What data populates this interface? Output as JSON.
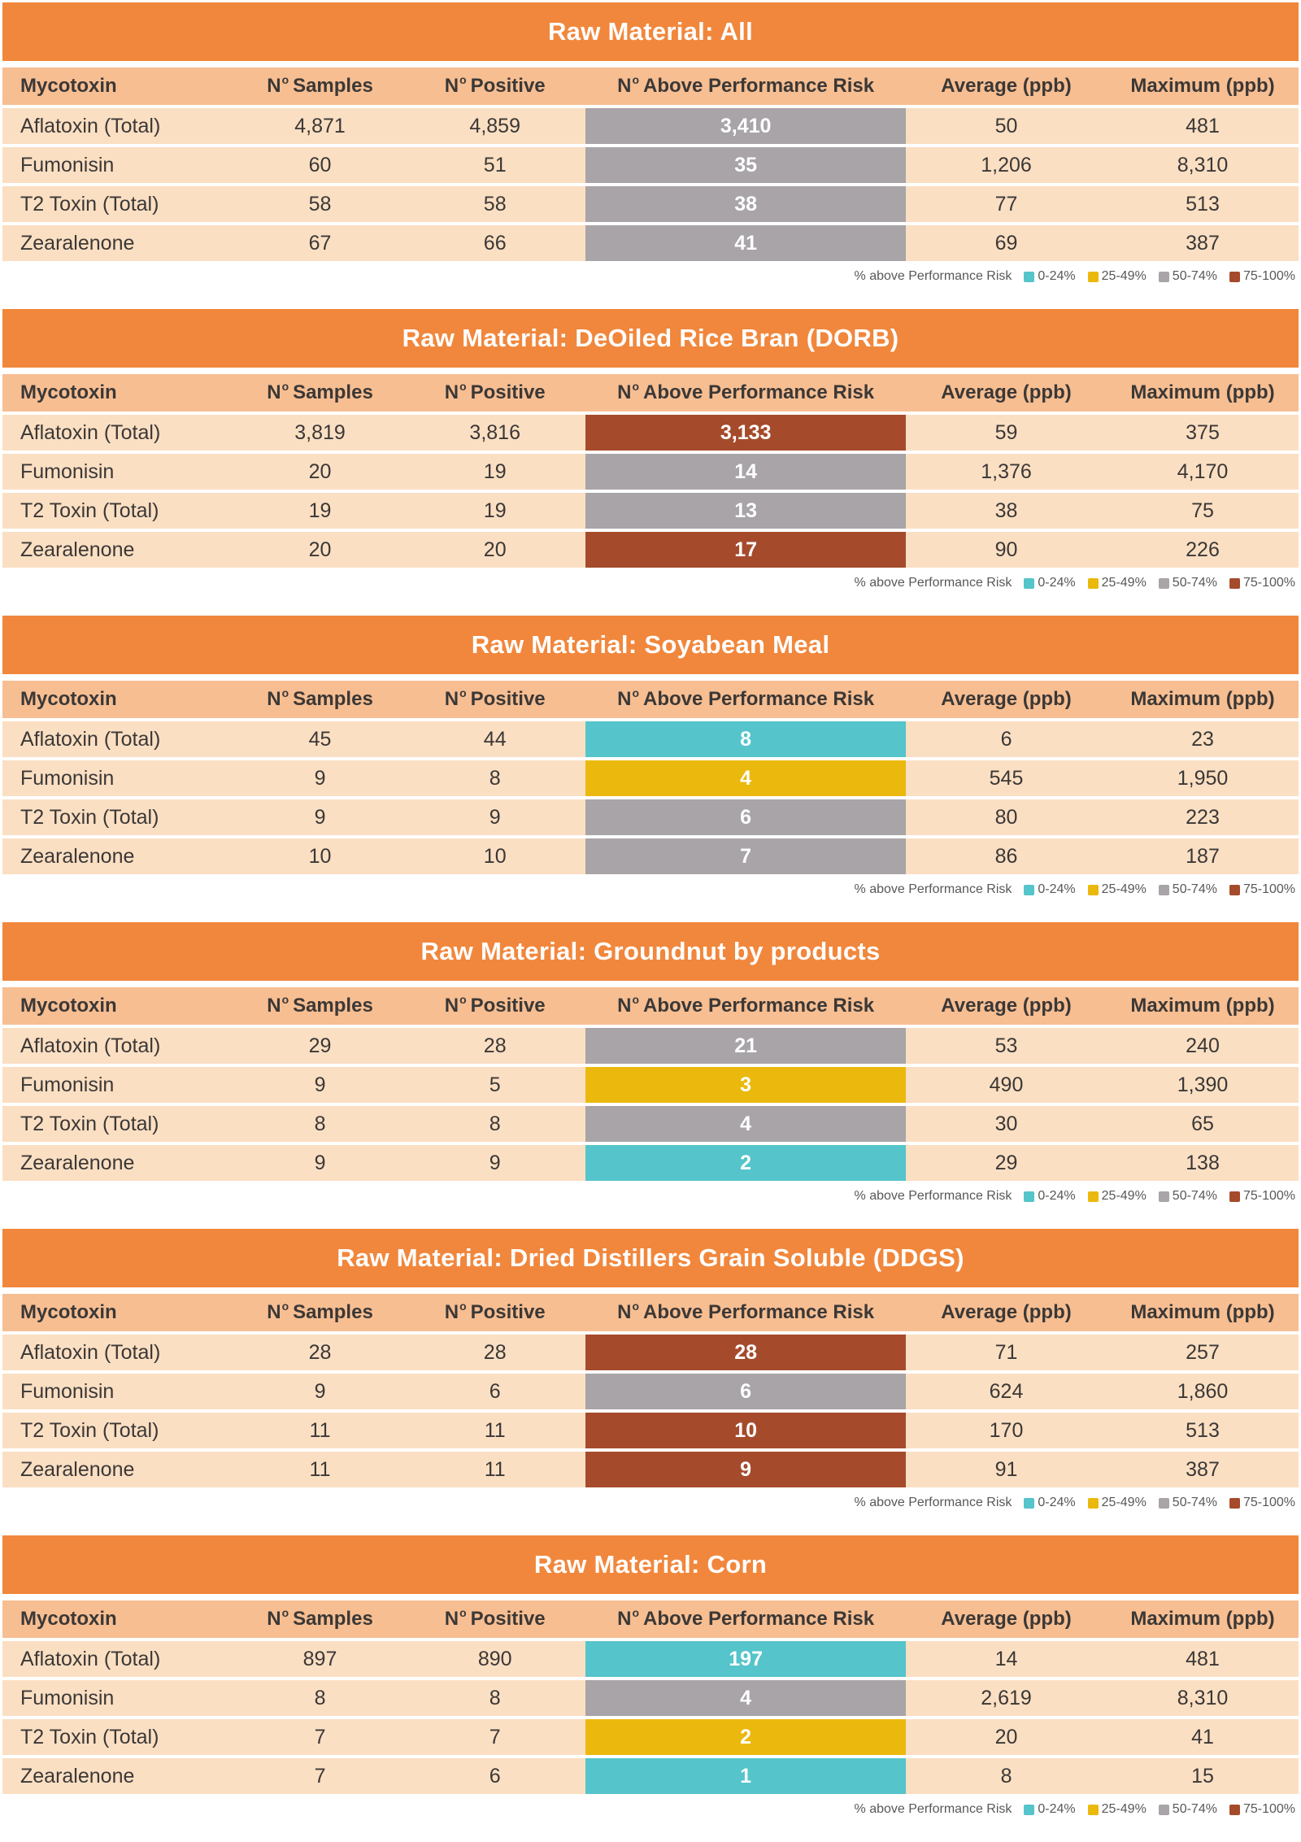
{
  "page": {
    "background": "#FFFFFF"
  },
  "colors": {
    "title_band": "#F1873C",
    "header_row": "#F7BE92",
    "data_row": "#FBDFC3",
    "title_text": "#FFFFFF",
    "body_text": "#3B3836",
    "risk_value_text": "#FFFFFF",
    "legend_text": "#58585A",
    "risk_levels": {
      "0-24": "#55C4CB",
      "25-49": "#EBB90D",
      "50-74": "#A8A4A8",
      "75-100": "#A54B2C"
    }
  },
  "columns": {
    "mycotoxin": "Mycotoxin",
    "samples": {
      "n": "N",
      "sup": "o",
      "rest": "Samples"
    },
    "positive": {
      "n": "N",
      "sup": "o",
      "rest": "Positive"
    },
    "above": {
      "n": "N",
      "sup": "o",
      "rest": "Above Performance Risk"
    },
    "average": "Average (ppb)",
    "maximum": "Maximum (ppb)"
  },
  "legend": {
    "label": "% above Performance Risk",
    "items": [
      {
        "label": "0-24%",
        "level": "0-24"
      },
      {
        "label": "25-49%",
        "level": "25-49"
      },
      {
        "label": "50-74%",
        "level": "50-74"
      },
      {
        "label": "75-100%",
        "level": "75-100"
      }
    ]
  },
  "chart_data": [
    {
      "type": "table",
      "title": "Raw Material: All",
      "rows": [
        {
          "mycotoxin": "Aflatoxin (Total)",
          "samples": "4,871",
          "positive": "4,859",
          "above": "3,410",
          "above_level": "50-74",
          "average": "50",
          "maximum": "481"
        },
        {
          "mycotoxin": "Fumonisin",
          "samples": "60",
          "positive": "51",
          "above": "35",
          "above_level": "50-74",
          "average": "1,206",
          "maximum": "8,310"
        },
        {
          "mycotoxin": "T2 Toxin (Total)",
          "samples": "58",
          "positive": "58",
          "above": "38",
          "above_level": "50-74",
          "average": "77",
          "maximum": "513"
        },
        {
          "mycotoxin": "Zearalenone",
          "samples": "67",
          "positive": "66",
          "above": "41",
          "above_level": "50-74",
          "average": "69",
          "maximum": "387"
        }
      ]
    },
    {
      "type": "table",
      "title": "Raw Material: DeOiled Rice Bran (DORB)",
      "rows": [
        {
          "mycotoxin": "Aflatoxin (Total)",
          "samples": "3,819",
          "positive": "3,816",
          "above": "3,133",
          "above_level": "75-100",
          "average": "59",
          "maximum": "375"
        },
        {
          "mycotoxin": "Fumonisin",
          "samples": "20",
          "positive": "19",
          "above": "14",
          "above_level": "50-74",
          "average": "1,376",
          "maximum": "4,170"
        },
        {
          "mycotoxin": "T2 Toxin (Total)",
          "samples": "19",
          "positive": "19",
          "above": "13",
          "above_level": "50-74",
          "average": "38",
          "maximum": "75"
        },
        {
          "mycotoxin": "Zearalenone",
          "samples": "20",
          "positive": "20",
          "above": "17",
          "above_level": "75-100",
          "average": "90",
          "maximum": "226"
        }
      ]
    },
    {
      "type": "table",
      "title": "Raw Material: Soyabean Meal",
      "rows": [
        {
          "mycotoxin": "Aflatoxin (Total)",
          "samples": "45",
          "positive": "44",
          "above": "8",
          "above_level": "0-24",
          "average": "6",
          "maximum": "23"
        },
        {
          "mycotoxin": "Fumonisin",
          "samples": "9",
          "positive": "8",
          "above": "4",
          "above_level": "25-49",
          "average": "545",
          "maximum": "1,950"
        },
        {
          "mycotoxin": "T2 Toxin (Total)",
          "samples": "9",
          "positive": "9",
          "above": "6",
          "above_level": "50-74",
          "average": "80",
          "maximum": "223"
        },
        {
          "mycotoxin": "Zearalenone",
          "samples": "10",
          "positive": "10",
          "above": "7",
          "above_level": "50-74",
          "average": "86",
          "maximum": "187"
        }
      ]
    },
    {
      "type": "table",
      "title": "Raw Material: Groundnut by products",
      "rows": [
        {
          "mycotoxin": "Aflatoxin (Total)",
          "samples": "29",
          "positive": "28",
          "above": "21",
          "above_level": "50-74",
          "average": "53",
          "maximum": "240"
        },
        {
          "mycotoxin": "Fumonisin",
          "samples": "9",
          "positive": "5",
          "above": "3",
          "above_level": "25-49",
          "average": "490",
          "maximum": "1,390"
        },
        {
          "mycotoxin": "T2 Toxin (Total)",
          "samples": "8",
          "positive": "8",
          "above": "4",
          "above_level": "50-74",
          "average": "30",
          "maximum": "65"
        },
        {
          "mycotoxin": "Zearalenone",
          "samples": "9",
          "positive": "9",
          "above": "2",
          "above_level": "0-24",
          "average": "29",
          "maximum": "138"
        }
      ]
    },
    {
      "type": "table",
      "title": "Raw Material: Dried Distillers Grain Soluble (DDGS)",
      "rows": [
        {
          "mycotoxin": "Aflatoxin (Total)",
          "samples": "28",
          "positive": "28",
          "above": "28",
          "above_level": "75-100",
          "average": "71",
          "maximum": "257"
        },
        {
          "mycotoxin": "Fumonisin",
          "samples": "9",
          "positive": "6",
          "above": "6",
          "above_level": "50-74",
          "average": "624",
          "maximum": "1,860"
        },
        {
          "mycotoxin": "T2 Toxin (Total)",
          "samples": "11",
          "positive": "11",
          "above": "10",
          "above_level": "75-100",
          "average": "170",
          "maximum": "513"
        },
        {
          "mycotoxin": "Zearalenone",
          "samples": "11",
          "positive": "11",
          "above": "9",
          "above_level": "75-100",
          "average": "91",
          "maximum": "387"
        }
      ]
    },
    {
      "type": "table",
      "title": "Raw Material: Corn",
      "rows": [
        {
          "mycotoxin": "Aflatoxin (Total)",
          "samples": "897",
          "positive": "890",
          "above": "197",
          "above_level": "0-24",
          "average": "14",
          "maximum": "481"
        },
        {
          "mycotoxin": "Fumonisin",
          "samples": "8",
          "positive": "8",
          "above": "4",
          "above_level": "50-74",
          "average": "2,619",
          "maximum": "8,310"
        },
        {
          "mycotoxin": "T2 Toxin (Total)",
          "samples": "7",
          "positive": "7",
          "above": "2",
          "above_level": "25-49",
          "average": "20",
          "maximum": "41"
        },
        {
          "mycotoxin": "Zearalenone",
          "samples": "7",
          "positive": "6",
          "above": "1",
          "above_level": "0-24",
          "average": "8",
          "maximum": "15"
        }
      ]
    }
  ]
}
